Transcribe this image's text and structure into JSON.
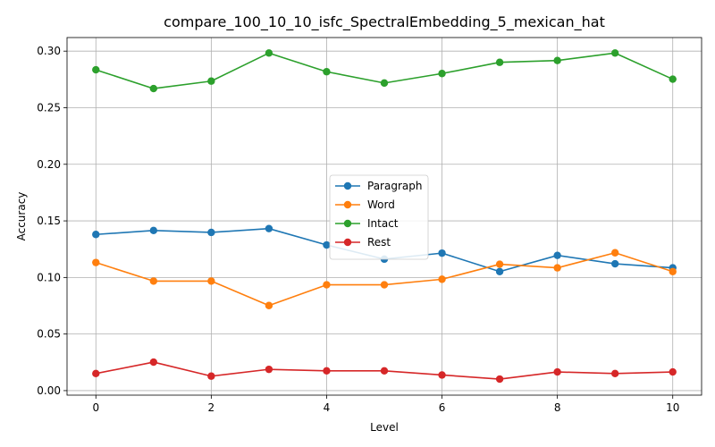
{
  "chart_data": {
    "type": "line",
    "title": "compare_100_10_10_isfc_SpectralEmbedding_5_mexican_hat",
    "xlabel": "Level",
    "ylabel": "Accuracy",
    "x": [
      0,
      1,
      2,
      3,
      4,
      5,
      6,
      7,
      8,
      9,
      10
    ],
    "xlim": [
      -0.5,
      10.5
    ],
    "ylim": [
      -0.004,
      0.312
    ],
    "xticks": [
      0,
      2,
      4,
      6,
      8,
      10
    ],
    "xtick_labels": [
      "0",
      "2",
      "4",
      "6",
      "8",
      "10"
    ],
    "yticks": [
      0.0,
      0.05,
      0.1,
      0.15,
      0.2,
      0.25,
      0.3
    ],
    "ytick_labels": [
      "0.00",
      "0.05",
      "0.10",
      "0.15",
      "0.20",
      "0.25",
      "0.30"
    ],
    "grid": true,
    "legend_position": "center",
    "series": [
      {
        "name": "Paragraph",
        "color": "#1f77b4",
        "values": [
          0.138,
          0.1415,
          0.1398,
          0.1432,
          0.1287,
          0.1162,
          0.1215,
          0.1052,
          0.1195,
          0.1121,
          0.1085
        ]
      },
      {
        "name": "Word",
        "color": "#ff7f0e",
        "values": [
          0.1132,
          0.0968,
          0.0968,
          0.0752,
          0.0935,
          0.0935,
          0.0984,
          0.1117,
          0.1085,
          0.1218,
          0.1052
        ]
      },
      {
        "name": "Intact",
        "color": "#2ca02c",
        "values": [
          0.2835,
          0.2669,
          0.2735,
          0.2983,
          0.2818,
          0.2718,
          0.2802,
          0.2901,
          0.2917,
          0.2983,
          0.2752
        ]
      },
      {
        "name": "Rest",
        "color": "#d62728",
        "values": [
          0.0151,
          0.0252,
          0.0128,
          0.0188,
          0.0175,
          0.0175,
          0.0138,
          0.0102,
          0.0165,
          0.0151,
          0.0165
        ]
      }
    ]
  }
}
